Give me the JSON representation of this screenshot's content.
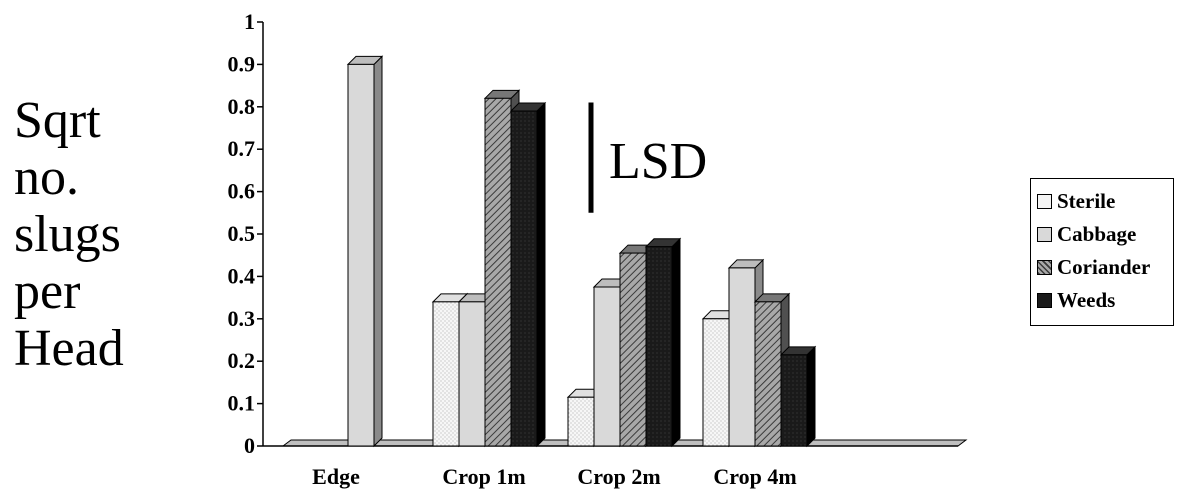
{
  "chart_data": {
    "type": "bar",
    "title": "",
    "ylabel_lines": [
      "Sqrt",
      "no.",
      "slugs",
      "per",
      "Head"
    ],
    "xlabel": "",
    "categories": [
      "Edge",
      "Crop 1m",
      "Crop 2m",
      "Crop 4m"
    ],
    "series": [
      {
        "name": "Sterile",
        "values": [
          null,
          0.34,
          0.115,
          0.3
        ],
        "color": "#f4f4f4",
        "pattern": "dots"
      },
      {
        "name": "Cabbage",
        "values": [
          0.9,
          0.34,
          0.375,
          0.42
        ],
        "color": "#d9d9d9",
        "pattern": "solid"
      },
      {
        "name": "Coriander",
        "values": [
          null,
          0.82,
          0.455,
          0.34
        ],
        "color": "#8c8c8c",
        "pattern": "hatch"
      },
      {
        "name": "Weeds",
        "values": [
          null,
          0.79,
          0.47,
          0.215
        ],
        "color": "#1a1a1a",
        "pattern": "dark"
      }
    ],
    "yticks": [
      "0",
      "0.1",
      "0.2",
      "0.3",
      "0.4",
      "0.5",
      "0.6",
      "0.7",
      "0.8",
      "0.9",
      "1"
    ],
    "ylim": [
      0,
      1
    ],
    "annotation": {
      "text": "LSD",
      "bar_from": 0.55,
      "bar_to": 0.81
    },
    "legend_position": "right",
    "grid": false,
    "style": "3d"
  }
}
